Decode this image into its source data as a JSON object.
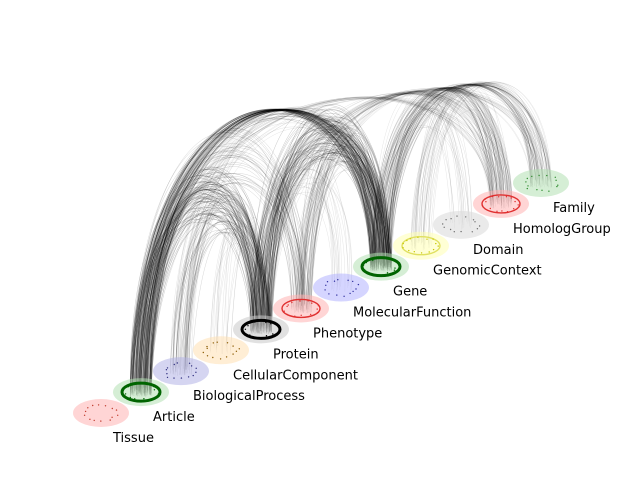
{
  "diagram": {
    "type": "hive-plot-style network",
    "layers": [
      {
        "id": "tissue",
        "label": "Tissue",
        "fill": "#ffb3b3",
        "ring": null,
        "dots": "#c0392b"
      },
      {
        "id": "article",
        "label": "Article",
        "fill": "#b3e0b3",
        "ring": "#006400",
        "dots": "#006400"
      },
      {
        "id": "biological-process",
        "label": "BiologicalProcess",
        "fill": "#b3b3e6",
        "ring": null,
        "dots": "#303080"
      },
      {
        "id": "cellular-component",
        "label": "CellularComponent",
        "fill": "#ffe0b3",
        "ring": null,
        "dots": "#8a5a00"
      },
      {
        "id": "protein",
        "label": "Protein",
        "fill": "#c8c8c8",
        "ring": "#000000",
        "dots": "#000000"
      },
      {
        "id": "phenotype",
        "label": "Phenotype",
        "fill": "#ffb3b3",
        "ring": "#e03030",
        "dots": "#e03030"
      },
      {
        "id": "molecular-function",
        "label": "MolecularFunction",
        "fill": "#b3b3ff",
        "ring": null,
        "dots": "#3030a0"
      },
      {
        "id": "gene",
        "label": "Gene",
        "fill": "#b3e0b3",
        "ring": "#006400",
        "dots": "#006400"
      },
      {
        "id": "genomic-context",
        "label": "GenomicContext",
        "fill": "#ffffb3",
        "ring": "#e0e060",
        "dots": "#c8c800"
      },
      {
        "id": "domain",
        "label": "Domain",
        "fill": "#d9d9d9",
        "ring": null,
        "dots": "#707070"
      },
      {
        "id": "homolog-group",
        "label": "HomologGroup",
        "fill": "#ffb3b3",
        "ring": "#e03030",
        "dots": "#e03030"
      },
      {
        "id": "family",
        "label": "Family",
        "fill": "#b3e0b3",
        "ring": null,
        "dots": "#2e8b2e"
      }
    ],
    "edge_color": "#000000",
    "edges": [
      {
        "from": "article",
        "to": "gene",
        "weight": "heavy"
      },
      {
        "from": "article",
        "to": "protein",
        "weight": "heavy"
      },
      {
        "from": "article",
        "to": "phenotype",
        "weight": "medium"
      },
      {
        "from": "article",
        "to": "homolog-group",
        "weight": "light"
      },
      {
        "from": "biological-process",
        "to": "protein",
        "weight": "medium"
      },
      {
        "from": "biological-process",
        "to": "gene",
        "weight": "light"
      },
      {
        "from": "cellular-component",
        "to": "protein",
        "weight": "light"
      },
      {
        "from": "protein",
        "to": "gene",
        "weight": "heavy"
      },
      {
        "from": "protein",
        "to": "homolog-group",
        "weight": "light"
      },
      {
        "from": "protein",
        "to": "family",
        "weight": "light"
      },
      {
        "from": "phenotype",
        "to": "gene",
        "weight": "medium"
      },
      {
        "from": "phenotype",
        "to": "homolog-group",
        "weight": "light"
      },
      {
        "from": "molecular-function",
        "to": "protein",
        "weight": "light"
      },
      {
        "from": "gene",
        "to": "homolog-group",
        "weight": "medium"
      },
      {
        "from": "gene",
        "to": "family",
        "weight": "medium"
      },
      {
        "from": "gene",
        "to": "domain",
        "weight": "light"
      },
      {
        "from": "genomic-context",
        "to": "family",
        "weight": "light"
      },
      {
        "from": "genomic-context",
        "to": "homolog-group",
        "weight": "light"
      }
    ]
  }
}
